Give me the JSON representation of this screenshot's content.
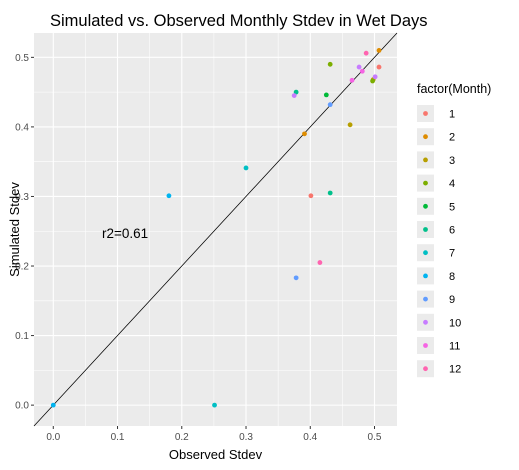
{
  "chart_data": {
    "type": "scatter",
    "title": "Simulated vs. Observed Monthly Stdev in Wet Days",
    "xlabel": "Observed Stdev",
    "ylabel": "Simulated Stdev",
    "xlim": [
      -0.03,
      0.535
    ],
    "ylim": [
      -0.03,
      0.535
    ],
    "x_ticks": [
      0.0,
      0.1,
      0.2,
      0.3,
      0.4,
      0.5
    ],
    "x_tick_labels": [
      "0.0",
      "0.1",
      "0.2",
      "0.3",
      "0.4",
      "0.5"
    ],
    "y_ticks": [
      0.0,
      0.1,
      0.2,
      0.3,
      0.4,
      0.5
    ],
    "y_tick_labels": [
      "0.0",
      "0.1",
      "0.2",
      "0.3",
      "0.4",
      "0.5"
    ],
    "grid": true,
    "reference_line": "y = x",
    "annotation": {
      "text": "r2=0.61",
      "x": 0.1,
      "y": 0.245
    },
    "legend": {
      "title": "factor(Month)",
      "position": "right",
      "entries": [
        "1",
        "2",
        "3",
        "4",
        "5",
        "6",
        "7",
        "8",
        "9",
        "10",
        "11",
        "12"
      ]
    },
    "colors": [
      "#F8766D",
      "#DE8C00",
      "#B79F00",
      "#7CAE00",
      "#00BA38",
      "#00C08B",
      "#00BFC4",
      "#00B4F0",
      "#619CFF",
      "#C77CFF",
      "#F564E3",
      "#FF64B0"
    ],
    "series": [
      {
        "name": "1",
        "points": [
          [
            0.401,
            0.301
          ],
          [
            0.507,
            0.486
          ]
        ]
      },
      {
        "name": "2",
        "points": [
          [
            0.391,
            0.39
          ],
          [
            0.507,
            0.51
          ]
        ]
      },
      {
        "name": "3",
        "points": [
          [
            0.462,
            0.403
          ],
          [
            0.498,
            0.468
          ]
        ]
      },
      {
        "name": "4",
        "points": [
          [
            0.431,
            0.49
          ],
          [
            0.497,
            0.466
          ]
        ]
      },
      {
        "name": "5",
        "points": [
          [
            0.425,
            0.446
          ]
        ]
      },
      {
        "name": "6",
        "points": [
          [
            0.431,
            0.305
          ],
          [
            0.378,
            0.45
          ]
        ]
      },
      {
        "name": "7",
        "points": [
          [
            0.3,
            0.341
          ],
          [
            0.251,
            0.0
          ]
        ]
      },
      {
        "name": "8",
        "points": [
          [
            0.18,
            0.301
          ],
          [
            0.0,
            0.0
          ]
        ]
      },
      {
        "name": "9",
        "points": [
          [
            0.378,
            0.183
          ],
          [
            0.431,
            0.432
          ]
        ]
      },
      {
        "name": "10",
        "points": [
          [
            0.375,
            0.445
          ],
          [
            0.476,
            0.486
          ],
          [
            0.501,
            0.472
          ]
        ]
      },
      {
        "name": "11",
        "points": [
          [
            0.465,
            0.467
          ],
          [
            0.481,
            0.48
          ]
        ]
      },
      {
        "name": "12",
        "points": [
          [
            0.415,
            0.205
          ],
          [
            0.487,
            0.506
          ]
        ]
      }
    ]
  }
}
